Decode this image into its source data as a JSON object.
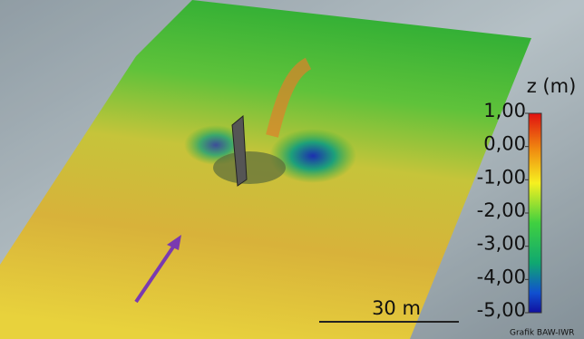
{
  "colorbar": {
    "title": "z (m)",
    "range": [
      -5,
      1
    ],
    "ticks": [
      {
        "value": 1,
        "label": "1,00"
      },
      {
        "value": 0,
        "label": "0,00"
      },
      {
        "value": -1,
        "label": "-1,00"
      },
      {
        "value": -2,
        "label": "-2,00"
      },
      {
        "value": -3,
        "label": "-3,00"
      },
      {
        "value": -4,
        "label": "-4,00"
      },
      {
        "value": -5,
        "label": "-5,00"
      }
    ]
  },
  "scale_bar": {
    "label": "30 m"
  },
  "credit": "Grafik BAW-IWR"
}
